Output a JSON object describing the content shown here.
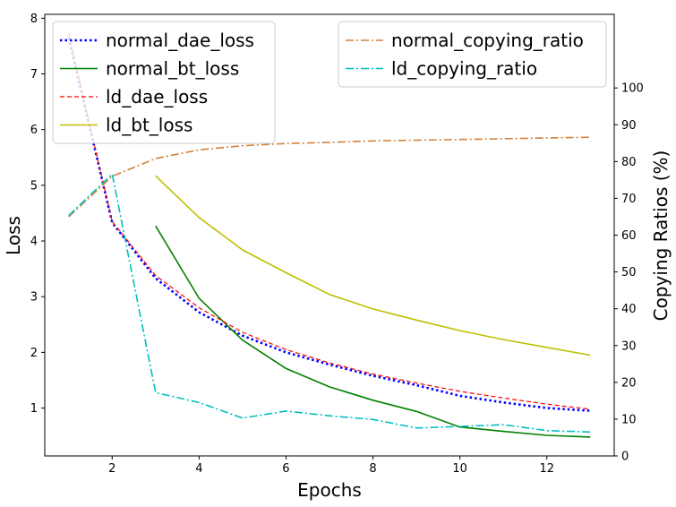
{
  "chart_data": {
    "type": "line",
    "title": "",
    "xlabel": "Epochs",
    "ylabel_left": "Loss",
    "ylabel_right": "Copying Ratios (%)",
    "x_ticks": [
      2,
      4,
      6,
      8,
      10,
      12
    ],
    "y_left_ticks": [
      1,
      2,
      3,
      4,
      5,
      6,
      7,
      8
    ],
    "y_right_ticks": [
      0,
      10,
      20,
      30,
      40,
      50,
      60,
      70,
      80,
      90,
      100
    ],
    "xlim": [
      0.45,
      13.55
    ],
    "ylim_left": [
      0.14,
      8.07
    ],
    "ylim_right": [
      0,
      120
    ],
    "grid": false,
    "legend_placement": [
      "upper-left",
      "upper-right"
    ],
    "series": [
      {
        "name": "normal_dae_loss",
        "axis": "left",
        "color": "#0000ff",
        "style": "dotted",
        "x": [
          1,
          2,
          3,
          4,
          5,
          6,
          7,
          8,
          9,
          10,
          11,
          12,
          13
        ],
        "values": [
          7.65,
          4.33,
          3.33,
          2.72,
          2.3,
          2.0,
          1.78,
          1.58,
          1.41,
          1.22,
          1.1,
          1.0,
          0.95
        ]
      },
      {
        "name": "normal_bt_loss",
        "axis": "left",
        "color": "#008000",
        "style": "solid",
        "x": [
          3,
          4,
          5,
          6,
          7,
          8,
          9,
          10,
          11,
          12,
          13
        ],
        "values": [
          4.27,
          2.97,
          2.22,
          1.71,
          1.38,
          1.14,
          0.94,
          0.66,
          0.58,
          0.51,
          0.48
        ]
      },
      {
        "name": "ld_dae_loss",
        "axis": "left",
        "color": "#ff0000",
        "style": "dashed",
        "x": [
          1,
          2,
          3,
          4,
          5,
          6,
          7,
          8,
          9,
          10,
          11,
          12,
          13
        ],
        "values": [
          7.72,
          4.35,
          3.38,
          2.8,
          2.36,
          2.05,
          1.81,
          1.61,
          1.45,
          1.3,
          1.18,
          1.07,
          0.98
        ]
      },
      {
        "name": "ld_bt_loss",
        "axis": "left",
        "color": "#bfbf00",
        "style": "solid",
        "x": [
          3,
          4,
          5,
          6,
          7,
          8,
          9,
          10,
          11,
          12,
          13
        ],
        "values": [
          5.17,
          4.42,
          3.84,
          3.43,
          3.04,
          2.78,
          2.58,
          2.39,
          2.23,
          2.09,
          1.95
        ]
      },
      {
        "name": "normal_copying_ratio",
        "axis": "right",
        "color": "#d2813c",
        "style": "dashdot",
        "x": [
          1,
          2,
          3,
          4,
          5,
          6,
          7,
          8,
          9,
          10,
          11,
          12,
          13
        ],
        "values": [
          65.0,
          76.0,
          80.8,
          83.2,
          84.3,
          84.9,
          85.2,
          85.6,
          85.8,
          86.0,
          86.2,
          86.4,
          86.6
        ]
      },
      {
        "name": "ld_copying_ratio",
        "axis": "right",
        "color": "#00bfbf",
        "style": "dashdot",
        "x": [
          1,
          2,
          3,
          4,
          5,
          6,
          7,
          8,
          9,
          10,
          11,
          12,
          13
        ],
        "values": [
          65.3,
          76.6,
          17.2,
          14.5,
          10.3,
          12.2,
          10.9,
          9.9,
          7.6,
          8.0,
          8.5,
          6.9,
          6.5
        ]
      }
    ]
  }
}
